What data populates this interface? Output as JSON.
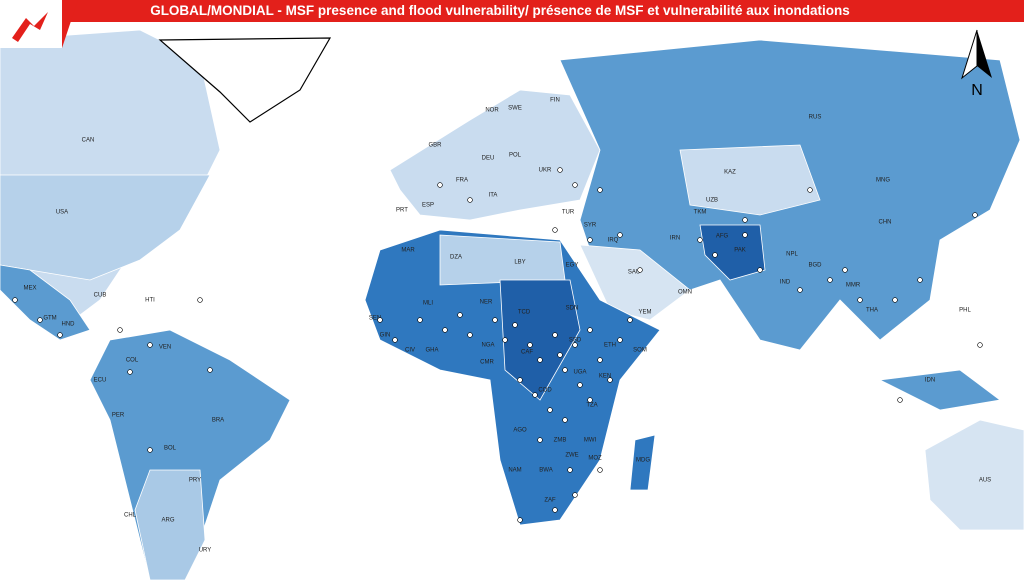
{
  "header": {
    "title": "GLOBAL/MONDIAL - MSF presence and flood vulnerability/ présence de MSF et vulnerabilité aux inondations"
  },
  "map": {
    "north": "N",
    "labels": [
      "CAN",
      "USA",
      "MEX",
      "CUB",
      "HTI",
      "GTM",
      "HND",
      "COL",
      "VEN",
      "ECU",
      "PER",
      "BRA",
      "BOL",
      "PRY",
      "CHL",
      "ARG",
      "URY",
      "GBR",
      "NOR",
      "SWE",
      "FIN",
      "POL",
      "DEU",
      "FRA",
      "ESP",
      "PRT",
      "ITA",
      "UKR",
      "TUR",
      "RUS",
      "KAZ",
      "MNG",
      "CHN",
      "UZB",
      "TKM",
      "SYR",
      "IRQ",
      "IRN",
      "AFG",
      "PAK",
      "IND",
      "NPL",
      "BGD",
      "MMR",
      "THA",
      "PHL",
      "IDN",
      "AUS",
      "SAU",
      "YEM",
      "OMN",
      "MAR",
      "DZA",
      "LBY",
      "EGY",
      "MLI",
      "NER",
      "TCD",
      "SDN",
      "SSD",
      "ETH",
      "SOM",
      "SEN",
      "GIN",
      "CIV",
      "GHA",
      "NGA",
      "CMR",
      "CAF",
      "COD",
      "UGA",
      "KEN",
      "TZA",
      "AGO",
      "ZMB",
      "MWI",
      "MOZ",
      "ZWE",
      "NAM",
      "BWA",
      "ZAF",
      "MDG"
    ]
  }
}
